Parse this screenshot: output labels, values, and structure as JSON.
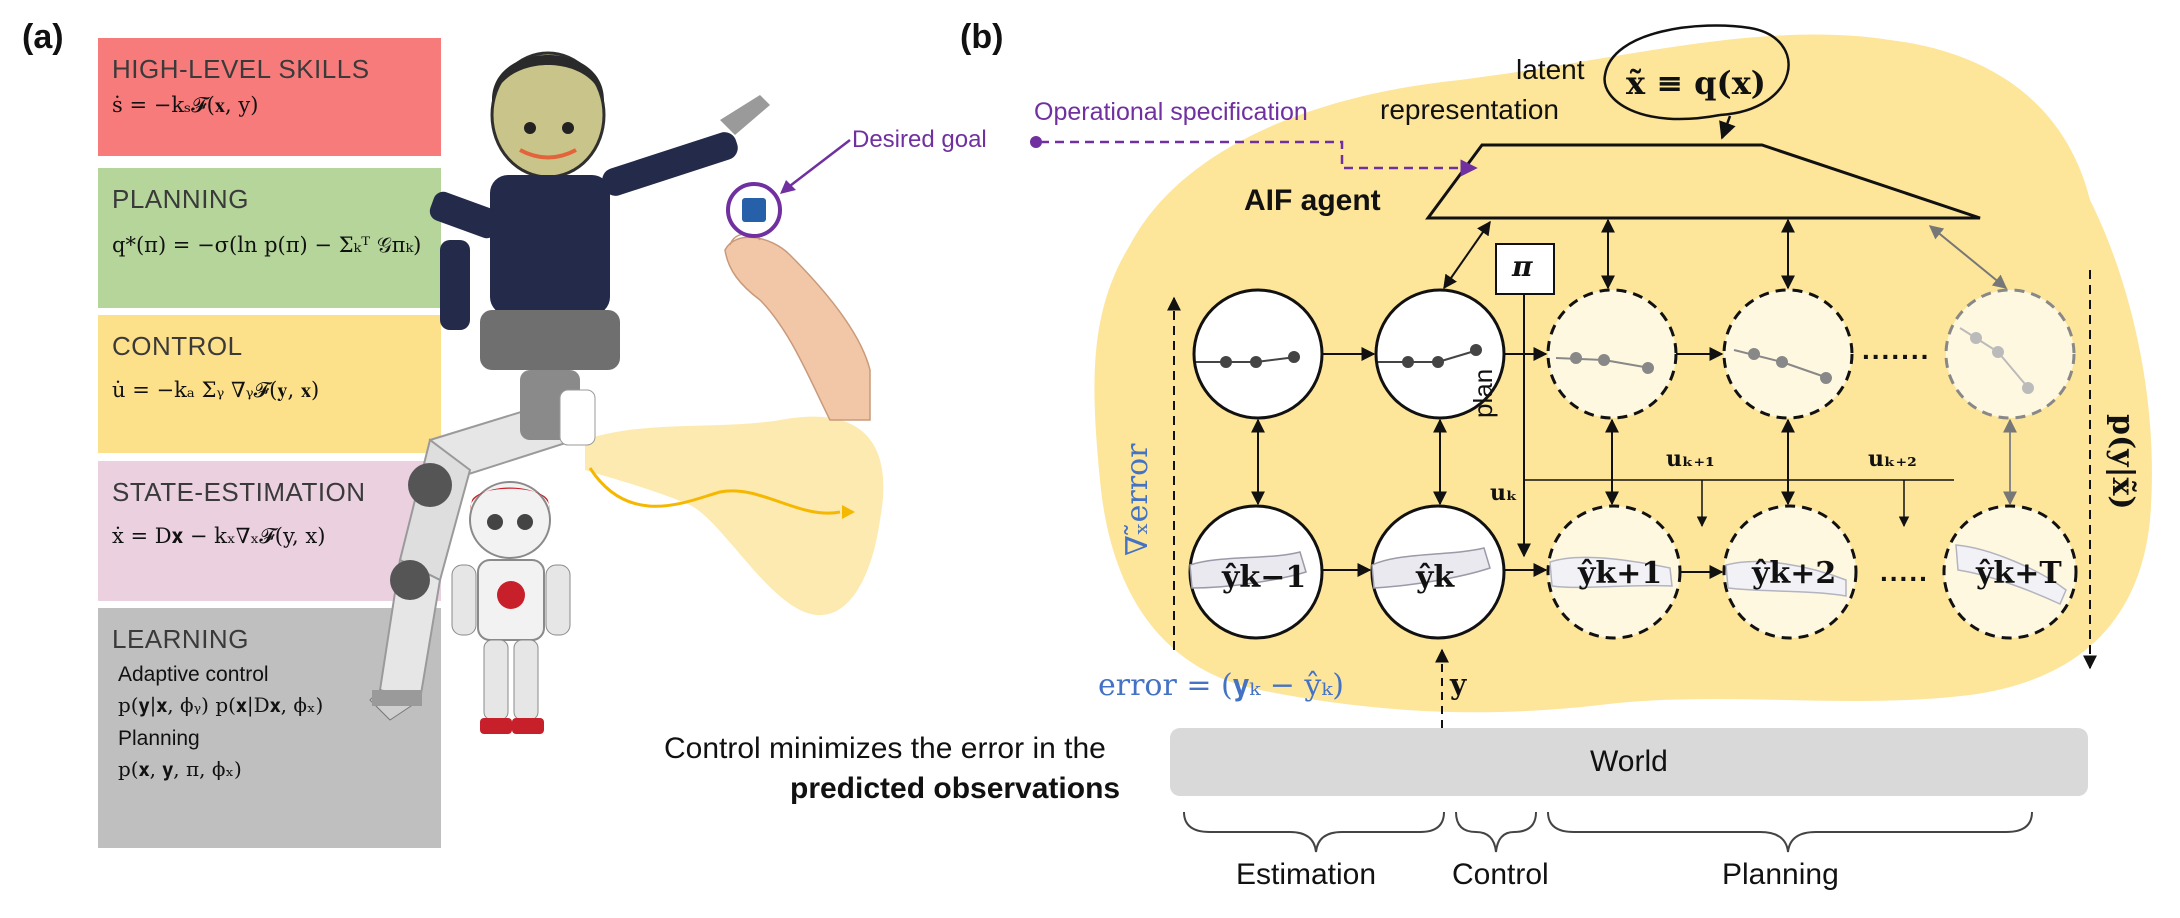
{
  "panel_a": {
    "label": "(a)",
    "boxes": [
      {
        "title": "HIGH-LEVEL SKILLS",
        "eq": "ṡ = −kₛ𝓕(𝐱, y)",
        "color": "#f77b7b"
      },
      {
        "title": "PLANNING",
        "eq": "q*(π) = −σ(ln p(π) − Σₖᵀ 𝒢πₖ)",
        "color": "#b5d59b"
      },
      {
        "title": "CONTROL",
        "eq": "u̇ = −kₐ Σᵧ ∇ᵧ𝓕(𝐲, 𝐱)",
        "color": "#fde08a"
      },
      {
        "title": "STATE-ESTIMATION",
        "eq": "ẋ = D𝐱 − kₓ∇ₓ𝓕(y, x)",
        "color": "#ebd1e0"
      },
      {
        "title": "LEARNING",
        "color": "#bfbfbf"
      }
    ],
    "learning": {
      "adaptive_label": "Adaptive control",
      "adaptive_eq": "p(𝐲|𝐱, ϕᵧ)  p(𝐱|D𝐱, ϕₓ)",
      "planning_label": "Planning",
      "planning_eq": "p(𝐱, 𝐲, π, ϕₓ)"
    },
    "desired_goal": "Desired goal",
    "accent_purple": "#7030a0",
    "trajectory_color": "#f5b800"
  },
  "panel_b": {
    "label": "(b)",
    "latent_line1": "latent",
    "latent_line2": "representation",
    "latent_eq": "x̃ ≡ q(x)",
    "operational_spec": "Operational specification",
    "agent_label": "AIF agent",
    "pi_label": "π",
    "plan_label": "plan",
    "error_grad": "∇ₓ̃error",
    "posterior_label": "p(y|x̃)",
    "u_k": "uₖ",
    "u_k1": "uₖ₊₁",
    "u_k2": "uₖ₊₂",
    "obs_labels": [
      "ŷk−1",
      "ŷk",
      "ŷk+1",
      "ŷk+2",
      "ŷk+T"
    ],
    "dots": ".......",
    "dots_short": ".....",
    "error_eq": "error = (𝐲ₖ − ŷₖ)",
    "y_label": "𝐲",
    "world_label": "World",
    "caption_line1": "Control minimizes the error in the",
    "caption_line2": "predicted observations",
    "phases": [
      "Estimation",
      "Control",
      "Planning"
    ],
    "blob_color": "#fde59a",
    "error_color": "#4472c4",
    "world_color": "#d9d9d9"
  }
}
